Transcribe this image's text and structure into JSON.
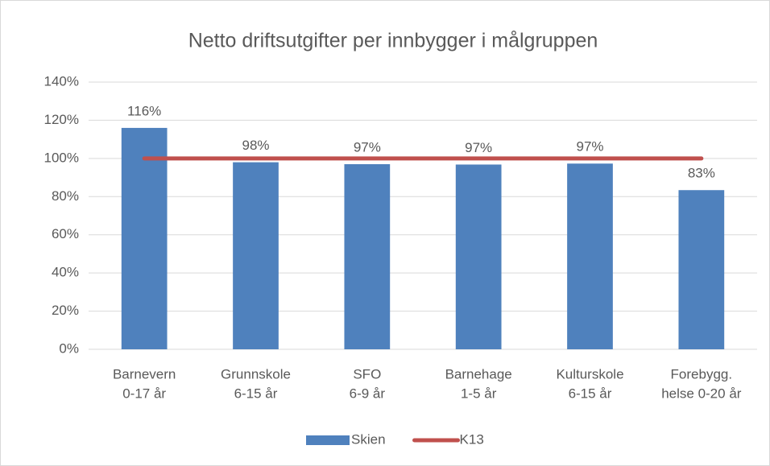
{
  "chart_data": {
    "type": "bar",
    "title": "Netto driftsutgifter per innbygger i målgruppen",
    "categories": [
      [
        "Barnevern",
        "0-17 år"
      ],
      [
        "Grunnskole",
        "6-15 år"
      ],
      [
        "SFO",
        "6-9 år"
      ],
      [
        "Barnehage",
        "1-5 år"
      ],
      [
        "Kulturskole",
        "6-15 år"
      ],
      [
        "Forebygg.",
        "helse 0-20 år"
      ]
    ],
    "series": [
      {
        "name": "Skien",
        "type": "bar",
        "color": "#4f81bd",
        "values": [
          116,
          98,
          97,
          96.8,
          97.3,
          83.4
        ],
        "value_labels": [
          "116%",
          "98%",
          "97%",
          "97%",
          "97%",
          "83%"
        ]
      },
      {
        "name": "K13",
        "type": "line",
        "color": "#c0504d",
        "values": [
          100,
          100,
          100,
          100,
          100,
          100
        ]
      }
    ],
    "ylim": [
      0,
      140
    ],
    "yticks": [
      {
        "value": 0,
        "label": "0%"
      },
      {
        "value": 20,
        "label": "20%"
      },
      {
        "value": 40,
        "label": "40%"
      },
      {
        "value": 60,
        "label": "60%"
      },
      {
        "value": 80,
        "label": "80%"
      },
      {
        "value": 100,
        "label": "100%"
      },
      {
        "value": 120,
        "label": "120%"
      },
      {
        "value": 140,
        "label": "140%"
      }
    ],
    "grid": true,
    "legend": "bottom"
  }
}
